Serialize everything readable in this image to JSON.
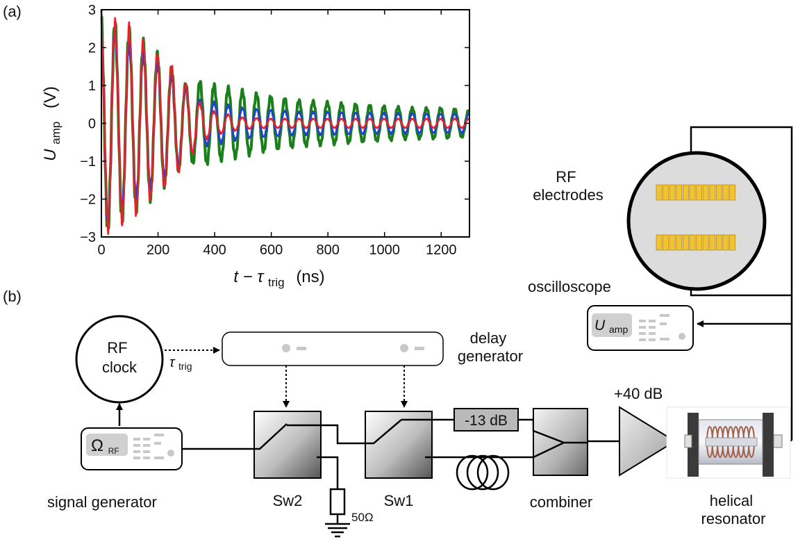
{
  "panels": {
    "a": "(a)",
    "b": "(b)"
  },
  "chart_data": {
    "type": "line",
    "title": "",
    "xlabel": {
      "main": "t − τ",
      "sub": "trig",
      "unit": "(ns)"
    },
    "ylabel": {
      "main": "U",
      "sub": "amp",
      "unit": "(V)"
    },
    "xlim": [
      0,
      1300
    ],
    "ylim": [
      -3,
      3
    ],
    "xticks": [
      "0",
      "200",
      "400",
      "600",
      "800",
      "1000",
      "1200"
    ],
    "yticks": [
      "3",
      "2",
      "1",
      "0",
      "−1",
      "−2",
      "−3"
    ],
    "grid": false,
    "legend": "none",
    "signal": {
      "period_ns": 50,
      "decay_tau_ns": 150,
      "switch_time_ns": 315
    },
    "series": [
      {
        "color": "#1a7f1a",
        "x": [
          0,
          50,
          100,
          150,
          200,
          250,
          300,
          350,
          400,
          500,
          600,
          700,
          800,
          900,
          1000,
          1100,
          1200,
          1300
        ],
        "envelope": [
          2.9,
          2.6,
          2.4,
          2.1,
          1.8,
          1.4,
          1.0,
          1.1,
          1.0,
          0.85,
          0.7,
          0.6,
          0.55,
          0.5,
          0.45,
          0.4,
          0.4,
          0.35
        ]
      },
      {
        "color": "#1f3fdd",
        "x": [
          0,
          50,
          100,
          150,
          200,
          250,
          300,
          350,
          400,
          500,
          600,
          700,
          800,
          900,
          1000,
          1100,
          1200,
          1300
        ],
        "envelope": [
          2.9,
          2.5,
          2.1,
          1.8,
          1.5,
          1.2,
          0.9,
          0.6,
          0.55,
          0.4,
          0.35,
          0.3,
          0.3,
          0.28,
          0.27,
          0.26,
          0.25,
          0.25
        ]
      },
      {
        "color": "#e8222a",
        "x": [
          0,
          50,
          100,
          150,
          200,
          250,
          300,
          350,
          400,
          500,
          600,
          700,
          800,
          900,
          1000,
          1100,
          1200,
          1300
        ],
        "envelope": [
          2.9,
          2.6,
          2.5,
          2.1,
          1.8,
          1.5,
          1.0,
          0.5,
          0.3,
          0.15,
          0.12,
          0.12,
          0.12,
          0.12,
          0.12,
          0.12,
          0.12,
          0.12
        ]
      }
    ]
  },
  "diagram": {
    "rf_electrodes": "RF\nelectrodes",
    "oscilloscope": "oscilloscope",
    "u_amp": {
      "main": "U",
      "sub": "amp"
    },
    "rf_clock": "RF\nclock",
    "tau_trig": {
      "main": "τ",
      "sub": "trig"
    },
    "delay_generator": "delay\ngenerator",
    "omega_rf": {
      "main": "Ω",
      "sub": "RF"
    },
    "signal_generator": "signal generator",
    "sw2": "Sw2",
    "sw1": "Sw1",
    "resistor": "50Ω",
    "attenuator": "-13 dB",
    "amplifier_gain": "+40 dB",
    "combiner": "combiner",
    "helical_resonator": "helical\nresonator"
  },
  "colors": {
    "green": "#1a7f1a",
    "blue": "#1f3fdd",
    "red": "#e8222a",
    "electrode": "#f2c232",
    "device": "#dcdcdc"
  }
}
